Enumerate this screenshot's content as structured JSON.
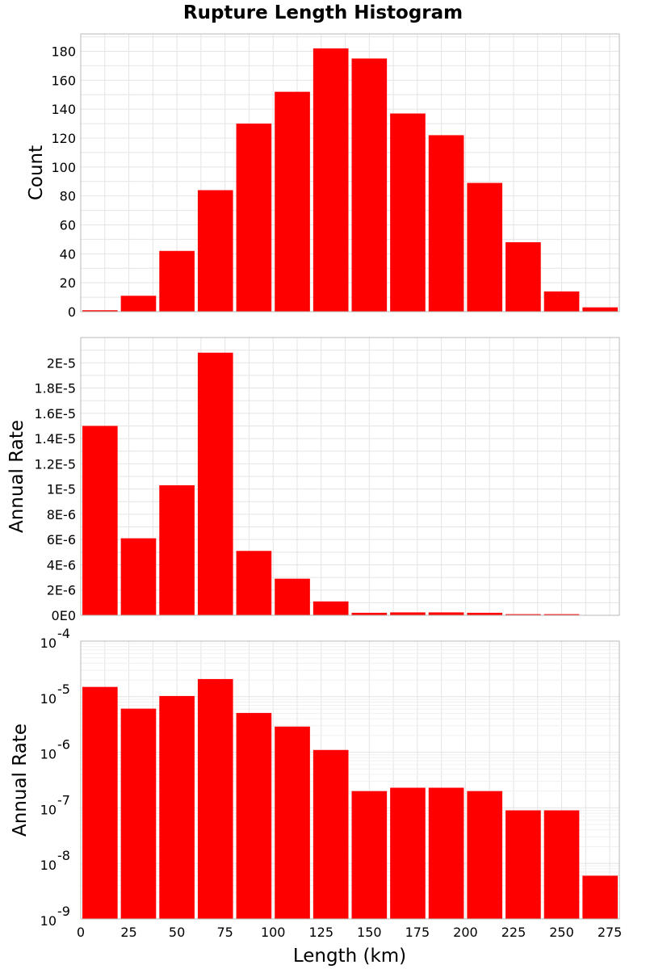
{
  "title": "Rupture Length Histogram",
  "chart_data": [
    {
      "type": "bar",
      "id": "count",
      "ylabel": "Count",
      "xlabel": "",
      "bar_color": "#ff0000",
      "bin_centers": [
        10,
        30,
        50,
        70,
        90,
        110,
        130,
        150,
        170,
        190,
        210,
        230,
        250,
        270
      ],
      "bin_width": 20,
      "values": [
        1,
        11,
        42,
        84,
        130,
        152,
        182,
        175,
        137,
        122,
        89,
        48,
        14,
        3
      ],
      "xlim": [
        0,
        280
      ],
      "ylim": [
        0,
        192
      ],
      "yticks": [
        0,
        20,
        40,
        60,
        80,
        100,
        120,
        140,
        160,
        180
      ],
      "ytick_labels": [
        "0",
        "20",
        "40",
        "60",
        "80",
        "100",
        "120",
        "140",
        "160",
        "180"
      ],
      "grid": true
    },
    {
      "type": "bar",
      "id": "rate-linear",
      "ylabel": "Annual Rate",
      "xlabel": "",
      "bar_color": "#ff0000",
      "bin_centers": [
        10,
        30,
        50,
        70,
        90,
        110,
        130,
        150,
        170,
        190,
        210,
        230,
        250,
        270
      ],
      "bin_width": 20,
      "values": [
        1.5e-05,
        6.1e-06,
        1.03e-05,
        2.08e-05,
        5.1e-06,
        2.9e-06,
        1.1e-06,
        2e-07,
        2.3e-07,
        2.3e-07,
        2e-07,
        9e-08,
        9e-08,
        6e-09
      ],
      "xlim": [
        0,
        280
      ],
      "ylim": [
        0,
        2.2e-05
      ],
      "yticks": [
        0,
        2e-06,
        4e-06,
        6e-06,
        8e-06,
        1e-05,
        1.2e-05,
        1.4e-05,
        1.6e-05,
        1.8e-05,
        2e-05
      ],
      "ytick_labels": [
        "0E0",
        "2E-6",
        "4E-6",
        "6E-6",
        "8E-6",
        "1E-5",
        "1.2E-5",
        "1.4E-5",
        "1.6E-5",
        "1.8E-5",
        "2E-5"
      ],
      "grid": true
    },
    {
      "type": "bar",
      "id": "rate-log",
      "ylabel": "Annual Rate",
      "xlabel": "Length (km)",
      "bar_color": "#ff0000",
      "yscale": "log",
      "bin_centers": [
        10,
        30,
        50,
        70,
        90,
        110,
        130,
        150,
        170,
        190,
        210,
        230,
        250,
        270
      ],
      "bin_width": 20,
      "values": [
        1.5e-05,
        6.1e-06,
        1.03e-05,
        2.08e-05,
        5.1e-06,
        2.9e-06,
        1.1e-06,
        2e-07,
        2.3e-07,
        2.3e-07,
        2e-07,
        9e-08,
        9e-08,
        6e-09
      ],
      "xlim": [
        0,
        280
      ],
      "ylim": [
        1e-09,
        0.0001
      ],
      "yticks": [
        1e-09,
        1e-08,
        1e-07,
        1e-06,
        1e-05,
        0.0001
      ],
      "ytick_exponents": [
        "-9",
        "-8",
        "-7",
        "-6",
        "-5",
        "-4"
      ],
      "ytick_base": "10",
      "xticks": [
        0,
        25,
        50,
        75,
        100,
        125,
        150,
        175,
        200,
        225,
        250,
        275
      ],
      "xtick_labels": [
        "0",
        "25",
        "50",
        "75",
        "100",
        "125",
        "150",
        "175",
        "200",
        "225",
        "250",
        "275"
      ],
      "grid": true
    }
  ]
}
